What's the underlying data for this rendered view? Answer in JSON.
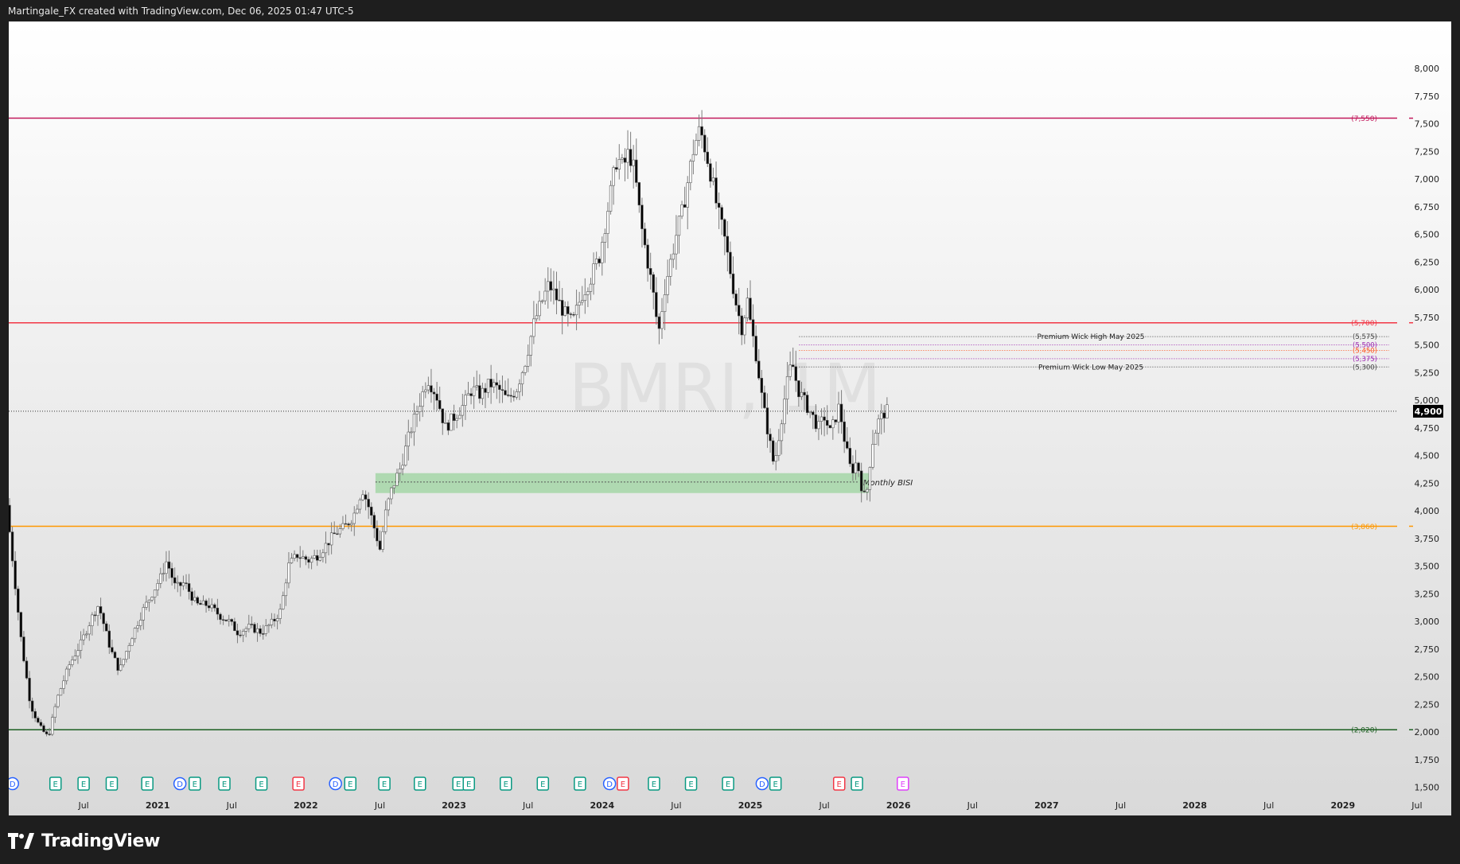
{
  "header": {
    "caption": "Martingale_FX created with TradingView.com, Dec 06, 2025 01:47 UTC-5"
  },
  "footer": {
    "brand": "TradingView"
  },
  "watermark": "BMRI, 1M",
  "colors": {
    "up": "#ffffff",
    "down": "#000000",
    "wick": "#7d7d7d",
    "level_7550": "#c2185b",
    "level_5700": "#f23645",
    "level_3860": "#ff9800",
    "level_2020": "#1b5e20",
    "bisi_zone": "#a5d6a7",
    "earnings_green": "#089981",
    "earnings_red": "#f23645",
    "dividend": "#2962ff",
    "future_event": "#e040fb"
  },
  "chart_data": {
    "type": "candlestick",
    "symbol": "BMRI",
    "interval": "1M",
    "ylim": [
      1250,
      8200
    ],
    "y_ticks": [
      "8,000",
      "7,750",
      "7,500",
      "7,250",
      "7,000",
      "6,750",
      "6,500",
      "6,250",
      "6,000",
      "5,750",
      "5,500",
      "5,250",
      "5,000",
      "4,750",
      "4,500",
      "4,250",
      "4,000",
      "3,750",
      "3,500",
      "3,250",
      "3,000",
      "2,750",
      "2,500",
      "2,250",
      "2,000",
      "1,750",
      "1,500"
    ],
    "x_ticks": [
      {
        "label": "Jul",
        "t": 2020.5
      },
      {
        "label": "2021",
        "t": 2021.0
      },
      {
        "label": "Jul",
        "t": 2021.5
      },
      {
        "label": "2022",
        "t": 2022.0
      },
      {
        "label": "Jul",
        "t": 2022.5
      },
      {
        "label": "2023",
        "t": 2023.0
      },
      {
        "label": "Jul",
        "t": 2023.5
      },
      {
        "label": "2024",
        "t": 2024.0
      },
      {
        "label": "Jul",
        "t": 2024.5
      },
      {
        "label": "2025",
        "t": 2025.0
      },
      {
        "label": "Jul",
        "t": 2025.5
      },
      {
        "label": "2026",
        "t": 2026.0
      },
      {
        "label": "Jul",
        "t": 2026.5
      },
      {
        "label": "2027",
        "t": 2027.0
      },
      {
        "label": "Jul",
        "t": 2027.5
      },
      {
        "label": "2028",
        "t": 2028.0
      },
      {
        "label": "Jul",
        "t": 2028.5
      },
      {
        "label": "2029",
        "t": 2029.0
      },
      {
        "label": "Jul",
        "t": 2029.5
      }
    ],
    "x_range": [
      2020.0,
      2029.5
    ],
    "current_price": {
      "value": 4900,
      "label": "4,900"
    },
    "horizontal_levels": [
      {
        "value": 7550,
        "label": "(7,550)",
        "color_key": "level_7550"
      },
      {
        "value": 5700,
        "label": "(5,700)",
        "color_key": "level_5700"
      },
      {
        "value": 3860,
        "label": "(3,860)",
        "color_key": "level_3860"
      },
      {
        "value": 2020,
        "label": "(2,020)",
        "color_key": "level_2020"
      }
    ],
    "wick_levels": [
      {
        "value": 5575,
        "label": "(5,575)",
        "color": "#444444"
      },
      {
        "value": 5500,
        "label": "(5,500)",
        "color": "#9c27b0"
      },
      {
        "value": 5450,
        "label": "(5,450)",
        "color": "#ff5722"
      },
      {
        "value": 5375,
        "label": "(5,375)",
        "color": "#9c27b0"
      },
      {
        "value": 5300,
        "label": "(5,300)",
        "color": "#444444"
      }
    ],
    "annotations": [
      {
        "text": "Premium Wick High May 2025",
        "value": 5575
      },
      {
        "text": "Premium Wick Low May 2025",
        "value": 5300
      }
    ],
    "zone": {
      "label": "Monthly BISI",
      "top": 4340,
      "bottom": 4160,
      "mid": 4260,
      "t_start": 2022.47,
      "t_end": 2025.8
    },
    "candles_weekly_approx": {
      "start": 2020.0,
      "end": 2025.93,
      "path": [
        [
          2020.0,
          4050
        ],
        [
          2020.04,
          3550
        ],
        [
          2020.1,
          2800
        ],
        [
          2020.16,
          2250
        ],
        [
          2020.22,
          2050
        ],
        [
          2020.28,
          1950
        ],
        [
          2020.34,
          2300
        ],
        [
          2020.42,
          2600
        ],
        [
          2020.5,
          2800
        ],
        [
          2020.58,
          3050
        ],
        [
          2020.62,
          3150
        ],
        [
          2020.7,
          2750
        ],
        [
          2020.76,
          2550
        ],
        [
          2020.84,
          2850
        ],
        [
          2020.92,
          3100
        ],
        [
          2021.0,
          3300
        ],
        [
          2021.04,
          3400
        ],
        [
          2021.08,
          3550
        ],
        [
          2021.14,
          3300
        ],
        [
          2021.2,
          3350
        ],
        [
          2021.28,
          3150
        ],
        [
          2021.36,
          3150
        ],
        [
          2021.44,
          3050
        ],
        [
          2021.5,
          3000
        ],
        [
          2021.56,
          2900
        ],
        [
          2021.64,
          2950
        ],
        [
          2021.72,
          2900
        ],
        [
          2021.8,
          3000
        ],
        [
          2021.85,
          3100
        ],
        [
          2021.9,
          3500
        ],
        [
          2021.96,
          3600
        ],
        [
          2022.04,
          3550
        ],
        [
          2022.1,
          3600
        ],
        [
          2022.16,
          3700
        ],
        [
          2022.22,
          3800
        ],
        [
          2022.28,
          3850
        ],
        [
          2022.34,
          3950
        ],
        [
          2022.4,
          4200
        ],
        [
          2022.44,
          4050
        ],
        [
          2022.48,
          3850
        ],
        [
          2022.52,
          3650
        ],
        [
          2022.56,
          4000
        ],
        [
          2022.6,
          4200
        ],
        [
          2022.66,
          4400
        ],
        [
          2022.72,
          4700
        ],
        [
          2022.78,
          4950
        ],
        [
          2022.84,
          5200
        ],
        [
          2022.9,
          5050
        ],
        [
          2022.96,
          4750
        ],
        [
          2023.02,
          4850
        ],
        [
          2023.08,
          4950
        ],
        [
          2023.14,
          5100
        ],
        [
          2023.2,
          5050
        ],
        [
          2023.26,
          5150
        ],
        [
          2023.32,
          5100
        ],
        [
          2023.38,
          5000
        ],
        [
          2023.44,
          5100
        ],
        [
          2023.5,
          5350
        ],
        [
          2023.56,
          5700
        ],
        [
          2023.6,
          5850
        ],
        [
          2023.66,
          6050
        ],
        [
          2023.72,
          5900
        ],
        [
          2023.78,
          5750
        ],
        [
          2023.82,
          5700
        ],
        [
          2023.88,
          5950
        ],
        [
          2023.94,
          6100
        ],
        [
          2024.0,
          6300
        ],
        [
          2024.04,
          6600
        ],
        [
          2024.08,
          6900
        ],
        [
          2024.12,
          7200
        ],
        [
          2024.16,
          7100
        ],
        [
          2024.2,
          7250
        ],
        [
          2024.24,
          7050
        ],
        [
          2024.28,
          6600
        ],
        [
          2024.32,
          6300
        ],
        [
          2024.36,
          6000
        ],
        [
          2024.4,
          5600
        ],
        [
          2024.44,
          6000
        ],
        [
          2024.48,
          6250
        ],
        [
          2024.52,
          6500
        ],
        [
          2024.56,
          6700
        ],
        [
          2024.6,
          7000
        ],
        [
          2024.64,
          7300
        ],
        [
          2024.68,
          7450
        ],
        [
          2024.72,
          7250
        ],
        [
          2024.76,
          7000
        ],
        [
          2024.8,
          6700
        ],
        [
          2024.84,
          6500
        ],
        [
          2024.88,
          6200
        ],
        [
          2024.92,
          5900
        ],
        [
          2024.96,
          5650
        ],
        [
          2025.0,
          5900
        ],
        [
          2025.02,
          5700
        ],
        [
          2025.06,
          5400
        ],
        [
          2025.1,
          5000
        ],
        [
          2025.14,
          4700
        ],
        [
          2025.18,
          4400
        ],
        [
          2025.22,
          4750
        ],
        [
          2025.26,
          5100
        ],
        [
          2025.3,
          5350
        ],
        [
          2025.34,
          5100
        ],
        [
          2025.38,
          5000
        ],
        [
          2025.42,
          4900
        ],
        [
          2025.48,
          4750
        ],
        [
          2025.52,
          4850
        ],
        [
          2025.56,
          4700
        ],
        [
          2025.62,
          4950
        ],
        [
          2025.66,
          4600
        ],
        [
          2025.7,
          4350
        ],
        [
          2025.74,
          4450
        ],
        [
          2025.78,
          4150
        ],
        [
          2025.8,
          4100
        ],
        [
          2025.84,
          4600
        ],
        [
          2025.88,
          4800
        ],
        [
          2025.93,
          4900
        ]
      ]
    },
    "event_markers": [
      {
        "t": 2020.02,
        "type": "D"
      },
      {
        "t": 2020.31,
        "type": "E"
      },
      {
        "t": 2020.5,
        "type": "E"
      },
      {
        "t": 2020.69,
        "type": "E"
      },
      {
        "t": 2020.93,
        "type": "E"
      },
      {
        "t": 2021.15,
        "type": "D"
      },
      {
        "t": 2021.25,
        "type": "E"
      },
      {
        "t": 2021.45,
        "type": "E"
      },
      {
        "t": 2021.7,
        "type": "E"
      },
      {
        "t": 2021.95,
        "type": "E_red"
      },
      {
        "t": 2022.2,
        "type": "D"
      },
      {
        "t": 2022.3,
        "type": "E"
      },
      {
        "t": 2022.53,
        "type": "E"
      },
      {
        "t": 2022.77,
        "type": "E"
      },
      {
        "t": 2023.03,
        "type": "E"
      },
      {
        "t": 2023.1,
        "type": "E"
      },
      {
        "t": 2023.35,
        "type": "E"
      },
      {
        "t": 2023.6,
        "type": "E"
      },
      {
        "t": 2023.85,
        "type": "E"
      },
      {
        "t": 2024.05,
        "type": "D"
      },
      {
        "t": 2024.14,
        "type": "E_red"
      },
      {
        "t": 2024.35,
        "type": "E"
      },
      {
        "t": 2024.6,
        "type": "E"
      },
      {
        "t": 2024.85,
        "type": "E"
      },
      {
        "t": 2025.08,
        "type": "D"
      },
      {
        "t": 2025.17,
        "type": "E"
      },
      {
        "t": 2025.6,
        "type": "E_red"
      },
      {
        "t": 2025.72,
        "type": "E"
      },
      {
        "t": 2026.03,
        "type": "E_future"
      }
    ]
  }
}
